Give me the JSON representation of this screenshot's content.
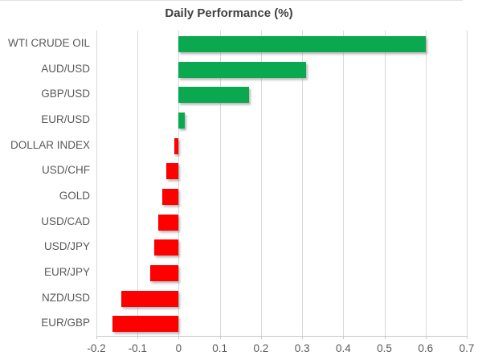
{
  "chart_data": {
    "type": "bar",
    "orientation": "horizontal",
    "title": "Daily Performance (%)",
    "categories": [
      "WTI CRUDE OIL",
      "AUD/USD",
      "GBP/USD",
      "EUR/USD",
      "DOLLAR INDEX",
      "USD/CHF",
      "GOLD",
      "USD/CAD",
      "USD/JPY",
      "EUR/JPY",
      "NZD/USD",
      "EUR/GBP"
    ],
    "values": [
      0.6,
      0.31,
      0.17,
      0.015,
      -0.01,
      -0.03,
      -0.04,
      -0.05,
      -0.06,
      -0.07,
      -0.14,
      -0.16
    ],
    "xlabel": "",
    "ylabel": "",
    "xlim": [
      -0.2,
      0.7
    ],
    "xticks": [
      -0.2,
      -0.1,
      0,
      0.1,
      0.2,
      0.3,
      0.4,
      0.5,
      0.6,
      0.7
    ],
    "xtick_labels": [
      "-0.2",
      "-0.1",
      "0",
      "0.1",
      "0.2",
      "0.3",
      "0.4",
      "0.5",
      "0.6",
      "0.7"
    ],
    "grid": true,
    "legend": "none",
    "positive_color": "#0aa94f",
    "negative_color": "#ff0000",
    "grid_color": "#d9d9d9",
    "axis_color": "#c9c9c9",
    "label_color": "#595959",
    "title_color": "#404040"
  }
}
